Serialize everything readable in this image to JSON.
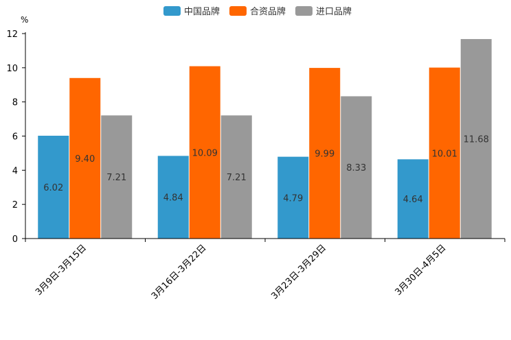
{
  "chart_data": {
    "type": "bar",
    "title": "",
    "xlabel": "",
    "ylabel": "%",
    "ylim": [
      0,
      12
    ],
    "yticks": [
      0,
      2,
      4,
      6,
      8,
      10,
      12
    ],
    "grid": false,
    "legend_position": "top-center",
    "categories": [
      "3月9日-3月15日",
      "3月16日-3月22日",
      "3月23日-3月29日",
      "3月30日-4月5日"
    ],
    "series": [
      {
        "name": "中国品牌",
        "color": "#3399cc",
        "values": [
          6.02,
          4.84,
          4.79,
          4.64
        ]
      },
      {
        "name": "合资品牌",
        "color": "#ff6600",
        "values": [
          9.4,
          10.09,
          9.99,
          10.01
        ]
      },
      {
        "name": "进口品牌",
        "color": "#999999",
        "values": [
          7.21,
          7.21,
          8.33,
          11.68
        ]
      }
    ]
  }
}
